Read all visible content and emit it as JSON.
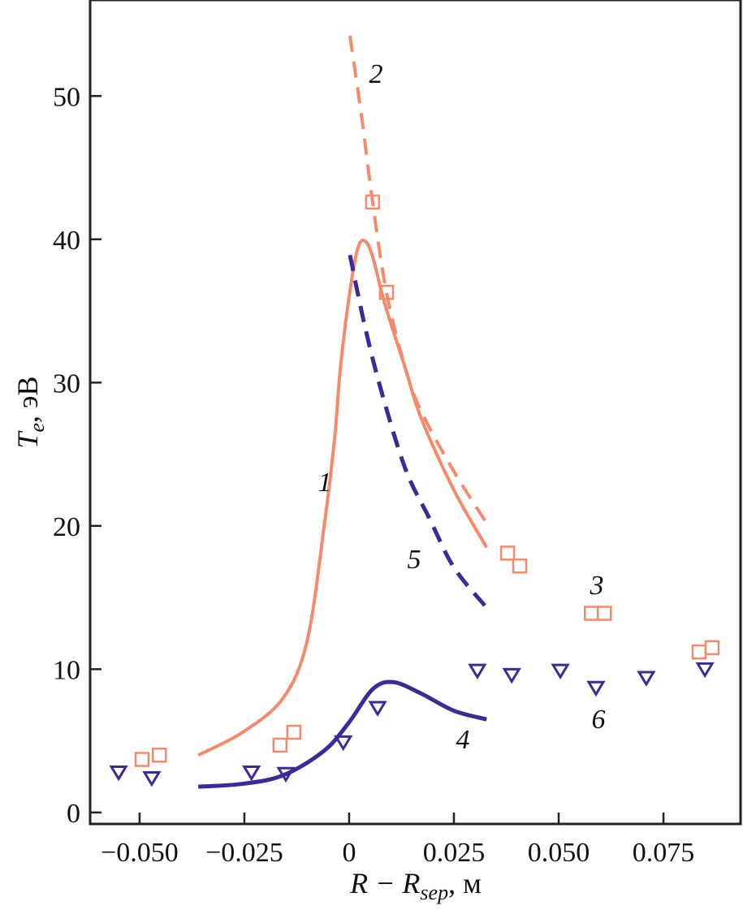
{
  "chart_data": {
    "type": "scatter",
    "xlabel": "R − R_sep, м",
    "xlabel_parts": {
      "main": "R − R",
      "sub": "sep",
      "unit": ", м"
    },
    "ylabel": "T_e, эВ",
    "ylabel_parts": {
      "main": "T",
      "sub": "e",
      "unit": ", эВ"
    },
    "xlim": [
      -0.0618,
      0.0934
    ],
    "ylim": [
      -0.8,
      56.7
    ],
    "xticks": [
      -0.05,
      -0.025,
      0,
      0.025,
      0.05,
      0.075
    ],
    "xtick_labels": [
      "−0.050",
      "−0.025",
      "0",
      "0.025",
      "0.050",
      "0.075"
    ],
    "yticks": [
      0,
      10,
      20,
      30,
      40,
      50
    ],
    "ytick_labels": [
      "0",
      "10",
      "20",
      "30",
      "40",
      "50"
    ],
    "grid": false,
    "colors": {
      "salmon": "#f4896b",
      "blue": "#3b2b96"
    },
    "series": [
      {
        "name": "1",
        "kind": "line-solid",
        "color": "#f4896b",
        "x": [
          -0.036,
          -0.0254,
          -0.0157,
          -0.01,
          -0.006,
          -0.0035,
          -0.0021,
          0,
          0.002,
          0.0037,
          0.0056,
          0.0085,
          0.0134,
          0.0172,
          0.025,
          0.0328
        ],
        "y": [
          4.0,
          5.6,
          8.0,
          12,
          19.9,
          26,
          31,
          36,
          39.3,
          39.9,
          38.8,
          35.5,
          31,
          27.5,
          22.5,
          18.5
        ]
      },
      {
        "name": "2",
        "kind": "line-dashed",
        "color": "#f4896b",
        "x": [
          0.0002,
          0.003,
          0.0056,
          0.0089,
          0.0134,
          0.0172,
          0.025,
          0.0328
        ],
        "y": [
          54.2,
          48.5,
          42.6,
          36.3,
          31,
          28,
          23.8,
          20.2
        ]
      },
      {
        "name": "3",
        "kind": "markers-square",
        "color": "#f4896b",
        "x": [
          -0.0494,
          -0.0453,
          -0.0165,
          -0.0132,
          0.0056,
          0.0089,
          0.0378,
          0.0407,
          0.0578,
          0.0609,
          0.0835,
          0.0866
        ],
        "y": [
          3.7,
          4.0,
          4.7,
          5.6,
          42.6,
          36.3,
          18.1,
          17.2,
          13.9,
          13.9,
          11.2,
          11.5
        ]
      },
      {
        "name": "4",
        "kind": "line-solid",
        "color": "#3b2b96",
        "x": [
          -0.036,
          -0.0254,
          -0.0157,
          -0.006,
          0,
          0.0056,
          0.0105,
          0.0172,
          0.025,
          0.0328
        ],
        "y": [
          1.8,
          2.0,
          2.6,
          4.3,
          6.3,
          8.6,
          9.1,
          8.3,
          7.1,
          6.5
        ]
      },
      {
        "name": "5",
        "kind": "line-dashed",
        "color": "#3b2b96",
        "x": [
          0.0002,
          0.0037,
          0.0076,
          0.0134,
          0.0192,
          0.025,
          0.0328
        ],
        "y": [
          38.9,
          34,
          29.5,
          24,
          20.5,
          17.1,
          14.3
        ]
      },
      {
        "name": "6",
        "kind": "markers-triangle",
        "color": "#3b2b96",
        "x": [
          -0.055,
          -0.0471,
          -0.0233,
          -0.0151,
          -0.0014,
          0.0068,
          0.0306,
          0.0388,
          0.0504,
          0.0589,
          0.0709,
          0.0849
        ],
        "y": [
          2.8,
          2.4,
          2.8,
          2.7,
          4.9,
          7.3,
          9.9,
          9.6,
          9.9,
          8.7,
          9.4,
          10.0
        ]
      }
    ],
    "annotations": [
      "1",
      "2",
      "3",
      "4",
      "5",
      "6"
    ]
  }
}
